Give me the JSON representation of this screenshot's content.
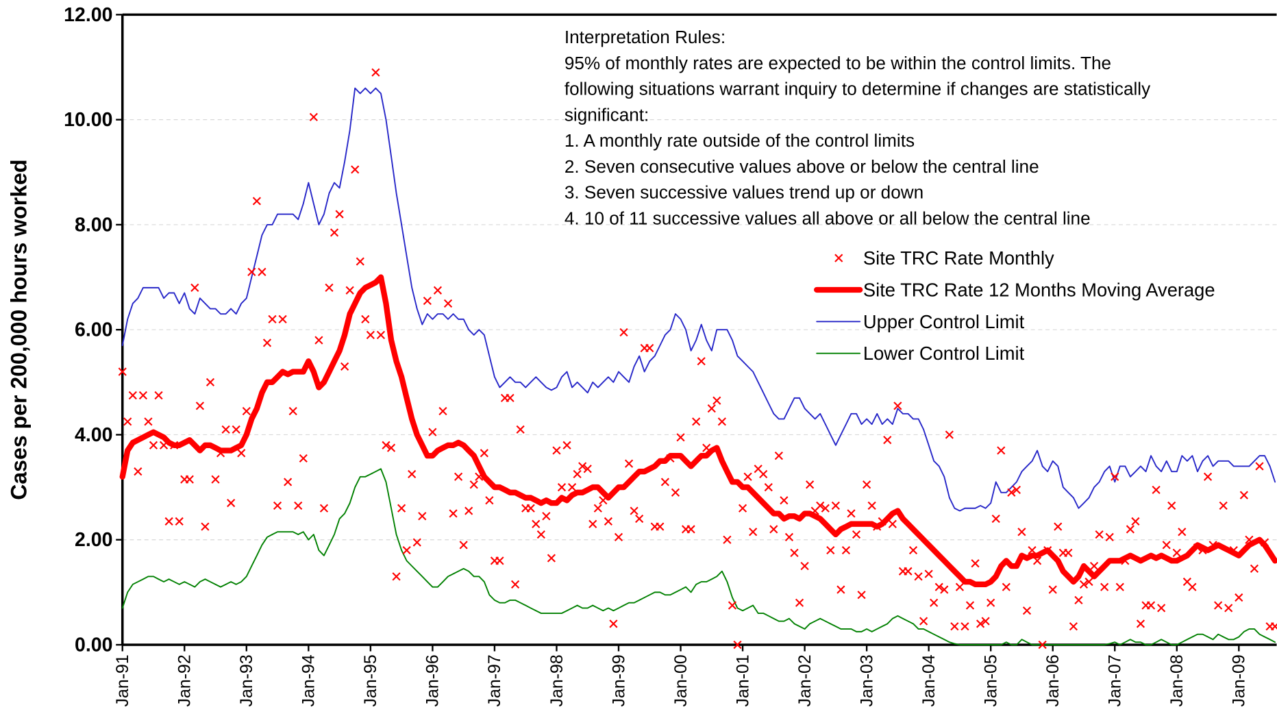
{
  "chart_data": {
    "type": "line",
    "ylabel": "Cases per 200,000 hours worked",
    "annotation": [
      "Interpretation Rules:",
      "95% of monthly rates are expected to be within the control limits.  The",
      "following situations warrant inquiry to determine if changes are statistically",
      "significant:",
      "1. A monthly rate outside of the control limits",
      "2. Seven consecutive values above or below the central line",
      "3. Seven successive values trend up or down",
      "4. 10 of 11 successive values all above or all below the central line"
    ],
    "ylim": [
      0,
      12
    ],
    "yticks": [
      {
        "value": 0,
        "label": "0.00"
      },
      {
        "value": 2,
        "label": "2.00"
      },
      {
        "value": 4,
        "label": "4.00"
      },
      {
        "value": 6,
        "label": "6.00"
      },
      {
        "value": 8,
        "label": "8.00"
      },
      {
        "value": 10,
        "label": "10.00"
      },
      {
        "value": 12,
        "label": "12.00"
      }
    ],
    "grid": true,
    "legend": "upper right",
    "categories": [
      "Jan-91",
      null,
      null,
      null,
      null,
      null,
      null,
      null,
      null,
      null,
      null,
      null,
      "Jan-92",
      null,
      null,
      null,
      null,
      null,
      null,
      null,
      null,
      null,
      null,
      null,
      "Jan-93",
      null,
      null,
      null,
      null,
      null,
      null,
      null,
      null,
      null,
      null,
      null,
      "Jan-94",
      null,
      null,
      null,
      null,
      null,
      null,
      null,
      null,
      null,
      null,
      null,
      "Jan-95",
      null,
      null,
      null,
      null,
      null,
      null,
      null,
      null,
      null,
      null,
      null,
      "Jan-96",
      null,
      null,
      null,
      null,
      null,
      null,
      null,
      null,
      null,
      null,
      null,
      "Jan-97",
      null,
      null,
      null,
      null,
      null,
      null,
      null,
      null,
      null,
      null,
      null,
      "Jan-98",
      null,
      null,
      null,
      null,
      null,
      null,
      null,
      null,
      null,
      null,
      null,
      "Jan-99",
      null,
      null,
      null,
      null,
      null,
      null,
      null,
      null,
      null,
      null,
      null,
      "Jan-00",
      null,
      null,
      null,
      null,
      null,
      null,
      null,
      null,
      null,
      null,
      null,
      "Jan-01",
      null,
      null,
      null,
      null,
      null,
      null,
      null,
      null,
      null,
      null,
      null,
      "Jan-02",
      null,
      null,
      null,
      null,
      null,
      null,
      null,
      null,
      null,
      null,
      null,
      "Jan-03",
      null,
      null,
      null,
      null,
      null,
      null,
      null,
      null,
      null,
      null,
      null,
      "Jan-04",
      null,
      null,
      null,
      null,
      null,
      null,
      null,
      null,
      null,
      null,
      null,
      "Jan-05",
      null,
      null,
      null,
      null,
      null,
      null,
      null,
      null,
      null,
      null,
      null,
      "Jan-06",
      null,
      null,
      null,
      null,
      null,
      null,
      null,
      null,
      null,
      null,
      null,
      "Jan-07",
      null,
      null,
      null,
      null,
      null,
      null,
      null,
      null,
      null,
      null,
      null,
      "Jan-08",
      null,
      null,
      null,
      null,
      null,
      null,
      null,
      null,
      null,
      null,
      null,
      "Jan-09",
      null,
      null,
      null,
      null,
      null,
      null,
      null
    ],
    "series": [
      {
        "name": "Site TRC Rate Monthly",
        "kind": "scatter",
        "color": "#ff0000",
        "values": [
          5.2,
          4.25,
          4.75,
          3.3,
          4.75,
          4.25,
          3.8,
          4.75,
          3.8,
          2.35,
          3.8,
          2.35,
          3.15,
          3.15,
          6.8,
          4.55,
          2.25,
          5.0,
          3.15,
          3.65,
          4.1,
          2.7,
          4.1,
          3.65,
          4.45,
          7.1,
          8.45,
          7.1,
          5.75,
          6.2,
          2.65,
          6.2,
          3.1,
          4.45,
          2.65,
          3.55,
          5.3,
          10.05,
          5.8,
          2.6,
          6.8,
          7.85,
          8.2,
          5.3,
          6.75,
          9.05,
          7.3,
          6.2,
          5.9,
          10.9,
          5.9,
          3.8,
          3.75,
          1.3,
          2.6,
          1.8,
          3.25,
          1.95,
          2.45,
          6.55,
          4.05,
          6.75,
          4.45,
          6.5,
          2.5,
          3.2,
          1.9,
          2.55,
          3.05,
          3.2,
          3.65,
          2.75,
          1.6,
          1.6,
          4.7,
          4.7,
          1.15,
          4.1,
          2.6,
          2.6,
          2.3,
          2.1,
          2.45,
          1.65,
          3.7,
          3.0,
          3.8,
          3.0,
          3.25,
          3.4,
          3.35,
          2.3,
          2.6,
          2.75,
          2.35,
          0.4,
          2.05,
          5.95,
          3.45,
          2.55,
          2.4,
          5.65,
          5.65,
          2.25,
          2.25,
          3.1,
          3.55,
          2.9,
          3.95,
          2.2,
          2.2,
          4.25,
          5.4,
          3.75,
          4.5,
          4.65,
          4.25,
          2.0,
          0.75,
          0.0,
          2.6,
          3.2,
          2.15,
          3.35,
          3.25,
          3.0,
          2.2,
          3.6,
          2.75,
          2.05,
          1.75,
          0.8,
          1.5,
          3.05,
          2.55,
          2.65,
          2.6,
          1.8,
          2.65,
          1.05,
          1.8,
          2.5,
          2.1,
          0.95,
          3.05,
          2.65,
          2.25,
          2.35,
          3.9,
          2.3,
          4.55,
          1.4,
          1.4,
          1.8,
          1.3,
          0.45,
          1.35,
          0.8,
          1.1,
          1.05,
          4.0,
          0.35,
          1.1,
          0.35,
          0.75,
          1.55,
          0.4,
          0.45,
          0.8,
          2.4,
          3.7,
          1.1,
          2.9,
          2.95,
          2.15,
          0.65,
          1.8,
          1.6,
          0.0,
          1.8,
          1.05,
          2.25,
          1.75,
          1.75,
          0.35,
          0.85,
          1.15,
          1.2,
          1.5,
          2.1,
          1.1,
          2.05,
          3.2,
          1.1,
          1.6,
          2.2,
          2.35,
          0.4,
          0.75,
          0.75,
          2.95,
          0.7,
          1.9,
          2.65,
          1.75,
          2.15,
          1.2,
          1.1,
          1.85,
          1.8,
          3.2,
          1.9,
          0.75,
          2.65,
          0.7,
          1.8,
          0.9,
          2.85,
          2.0,
          1.45,
          3.4,
          1.95,
          0.35,
          0.35
        ]
      },
      {
        "name": "Site TRC Rate 12 Months Moving Average",
        "kind": "line",
        "width": 7,
        "color": "#ff0000",
        "values": [
          3.2,
          3.7,
          3.85,
          3.9,
          3.95,
          4.0,
          4.05,
          4.0,
          3.95,
          3.85,
          3.8,
          3.8,
          3.85,
          3.9,
          3.8,
          3.7,
          3.8,
          3.8,
          3.75,
          3.7,
          3.7,
          3.7,
          3.75,
          3.8,
          4.0,
          4.3,
          4.5,
          4.8,
          5.0,
          5.0,
          5.1,
          5.2,
          5.15,
          5.2,
          5.2,
          5.2,
          5.4,
          5.2,
          4.9,
          5.0,
          5.2,
          5.4,
          5.6,
          5.9,
          6.3,
          6.5,
          6.7,
          6.8,
          6.85,
          6.9,
          7.0,
          6.5,
          5.8,
          5.4,
          5.1,
          4.7,
          4.3,
          4.0,
          3.8,
          3.6,
          3.6,
          3.7,
          3.75,
          3.8,
          3.8,
          3.85,
          3.8,
          3.7,
          3.6,
          3.4,
          3.2,
          3.1,
          3.0,
          3.0,
          2.95,
          2.9,
          2.9,
          2.85,
          2.8,
          2.8,
          2.75,
          2.7,
          2.75,
          2.7,
          2.7,
          2.8,
          2.75,
          2.85,
          2.9,
          2.9,
          2.95,
          3.0,
          3.0,
          2.9,
          2.8,
          2.9,
          3.0,
          3.0,
          3.1,
          3.2,
          3.3,
          3.3,
          3.35,
          3.4,
          3.5,
          3.5,
          3.6,
          3.6,
          3.6,
          3.5,
          3.4,
          3.5,
          3.6,
          3.6,
          3.7,
          3.75,
          3.5,
          3.3,
          3.1,
          3.1,
          3.0,
          3.0,
          2.9,
          2.8,
          2.7,
          2.6,
          2.5,
          2.5,
          2.4,
          2.45,
          2.45,
          2.4,
          2.5,
          2.5,
          2.45,
          2.4,
          2.3,
          2.2,
          2.1,
          2.2,
          2.25,
          2.3,
          2.3,
          2.3,
          2.3,
          2.3,
          2.25,
          2.3,
          2.4,
          2.5,
          2.55,
          2.4,
          2.3,
          2.2,
          2.1,
          2.0,
          1.9,
          1.8,
          1.7,
          1.6,
          1.5,
          1.4,
          1.3,
          1.2,
          1.2,
          1.15,
          1.15,
          1.15,
          1.2,
          1.3,
          1.5,
          1.6,
          1.5,
          1.5,
          1.7,
          1.65,
          1.7,
          1.7,
          1.75,
          1.8,
          1.7,
          1.6,
          1.4,
          1.3,
          1.2,
          1.3,
          1.5,
          1.4,
          1.3,
          1.4,
          1.5,
          1.6,
          1.6,
          1.6,
          1.65,
          1.7,
          1.65,
          1.6,
          1.65,
          1.7,
          1.65,
          1.7,
          1.65,
          1.6,
          1.6,
          1.65,
          1.7,
          1.8,
          1.9,
          1.85,
          1.8,
          1.85,
          1.9,
          1.85,
          1.8,
          1.75,
          1.7,
          1.8,
          1.9,
          1.95,
          2.0,
          1.9,
          1.75,
          1.6
        ]
      },
      {
        "name": "Upper Control Limit",
        "kind": "line",
        "width": 1.6,
        "color": "#2626c8",
        "values": [
          5.7,
          6.2,
          6.5,
          6.6,
          6.8,
          6.8,
          6.8,
          6.8,
          6.6,
          6.7,
          6.7,
          6.5,
          6.7,
          6.4,
          6.3,
          6.6,
          6.5,
          6.4,
          6.4,
          6.3,
          6.3,
          6.4,
          6.3,
          6.5,
          6.6,
          7.0,
          7.4,
          7.8,
          8.0,
          8.0,
          8.2,
          8.2,
          8.2,
          8.2,
          8.1,
          8.4,
          8.8,
          8.4,
          8.0,
          8.2,
          8.6,
          8.8,
          8.7,
          9.2,
          9.8,
          10.6,
          10.5,
          10.6,
          10.5,
          10.6,
          10.5,
          10.0,
          9.3,
          8.6,
          8.0,
          7.4,
          6.8,
          6.4,
          6.1,
          6.3,
          6.2,
          6.3,
          6.3,
          6.2,
          6.3,
          6.2,
          6.2,
          6.0,
          5.9,
          6.0,
          5.9,
          5.5,
          5.1,
          4.9,
          5.0,
          5.1,
          5.0,
          5.0,
          4.9,
          5.0,
          5.1,
          5.0,
          4.9,
          4.85,
          4.9,
          5.1,
          5.2,
          4.9,
          5.0,
          4.9,
          4.8,
          5.0,
          4.9,
          5.0,
          5.1,
          5.0,
          5.2,
          5.1,
          5.0,
          5.3,
          5.5,
          5.2,
          5.4,
          5.5,
          5.7,
          5.9,
          6.0,
          6.3,
          6.2,
          6.0,
          5.6,
          5.8,
          6.1,
          5.8,
          5.6,
          6.0,
          6.0,
          6.0,
          5.8,
          5.5,
          5.4,
          5.3,
          5.2,
          5.0,
          4.8,
          4.6,
          4.4,
          4.3,
          4.3,
          4.5,
          4.7,
          4.7,
          4.5,
          4.4,
          4.3,
          4.4,
          4.2,
          4.0,
          3.8,
          4.0,
          4.2,
          4.4,
          4.4,
          4.2,
          4.3,
          4.2,
          4.4,
          4.2,
          4.3,
          4.2,
          4.5,
          4.4,
          4.4,
          4.3,
          4.3,
          4.1,
          3.8,
          3.5,
          3.4,
          3.2,
          2.8,
          2.6,
          2.55,
          2.6,
          2.6,
          2.6,
          2.65,
          2.6,
          2.7,
          3.1,
          2.9,
          2.9,
          3.0,
          3.1,
          3.3,
          3.4,
          3.5,
          3.7,
          3.4,
          3.3,
          3.5,
          3.4,
          3.0,
          2.9,
          2.8,
          2.6,
          2.7,
          2.8,
          3.0,
          3.1,
          3.3,
          3.4,
          3.1,
          3.4,
          3.4,
          3.2,
          3.3,
          3.4,
          3.3,
          3.6,
          3.4,
          3.3,
          3.5,
          3.3,
          3.3,
          3.6,
          3.5,
          3.6,
          3.3,
          3.5,
          3.6,
          3.4,
          3.5,
          3.5,
          3.5,
          3.4,
          3.4,
          3.4,
          3.4,
          3.5,
          3.6,
          3.6,
          3.4,
          3.1
        ]
      },
      {
        "name": "Lower Control Limit",
        "kind": "line",
        "width": 1.6,
        "color": "#008000",
        "values": [
          0.7,
          1.0,
          1.15,
          1.2,
          1.25,
          1.3,
          1.3,
          1.25,
          1.2,
          1.25,
          1.2,
          1.15,
          1.2,
          1.15,
          1.1,
          1.2,
          1.25,
          1.2,
          1.15,
          1.1,
          1.15,
          1.2,
          1.15,
          1.2,
          1.3,
          1.5,
          1.7,
          1.9,
          2.05,
          2.1,
          2.15,
          2.15,
          2.15,
          2.15,
          2.1,
          2.15,
          2.0,
          2.1,
          1.8,
          1.7,
          1.9,
          2.1,
          2.4,
          2.5,
          2.7,
          3.0,
          3.2,
          3.2,
          3.25,
          3.3,
          3.35,
          3.1,
          2.6,
          2.1,
          1.8,
          1.6,
          1.5,
          1.4,
          1.3,
          1.2,
          1.1,
          1.1,
          1.2,
          1.3,
          1.35,
          1.4,
          1.45,
          1.4,
          1.3,
          1.3,
          1.2,
          0.95,
          0.85,
          0.8,
          0.8,
          0.85,
          0.85,
          0.8,
          0.75,
          0.7,
          0.65,
          0.6,
          0.6,
          0.6,
          0.6,
          0.6,
          0.65,
          0.7,
          0.75,
          0.7,
          0.7,
          0.75,
          0.7,
          0.65,
          0.7,
          0.65,
          0.7,
          0.75,
          0.8,
          0.8,
          0.85,
          0.9,
          0.95,
          1.0,
          1.0,
          0.95,
          0.95,
          1.0,
          1.05,
          1.1,
          1.0,
          1.15,
          1.2,
          1.2,
          1.25,
          1.3,
          1.4,
          1.2,
          0.9,
          0.7,
          0.65,
          0.7,
          0.75,
          0.6,
          0.6,
          0.55,
          0.5,
          0.45,
          0.45,
          0.5,
          0.4,
          0.35,
          0.3,
          0.4,
          0.45,
          0.5,
          0.45,
          0.4,
          0.35,
          0.3,
          0.3,
          0.3,
          0.25,
          0.25,
          0.3,
          0.25,
          0.3,
          0.35,
          0.4,
          0.5,
          0.55,
          0.5,
          0.45,
          0.4,
          0.3,
          0.3,
          0.25,
          0.2,
          0.15,
          0.1,
          0.05,
          0.02,
          0,
          0,
          0,
          0,
          0,
          0,
          0,
          0,
          0,
          0.05,
          0,
          0,
          0.1,
          0.05,
          0,
          0,
          0,
          0,
          0,
          0,
          0,
          0,
          0,
          0,
          0,
          0,
          0,
          0,
          0,
          0.02,
          0.05,
          0,
          0.05,
          0.1,
          0.05,
          0.05,
          0,
          0,
          0.05,
          0.1,
          0.05,
          0,
          0,
          0.05,
          0.1,
          0.15,
          0.2,
          0.2,
          0.15,
          0.1,
          0.2,
          0.15,
          0.1,
          0.1,
          0.15,
          0.25,
          0.3,
          0.3,
          0.2,
          0.15,
          0.1,
          0.05
        ]
      }
    ]
  }
}
